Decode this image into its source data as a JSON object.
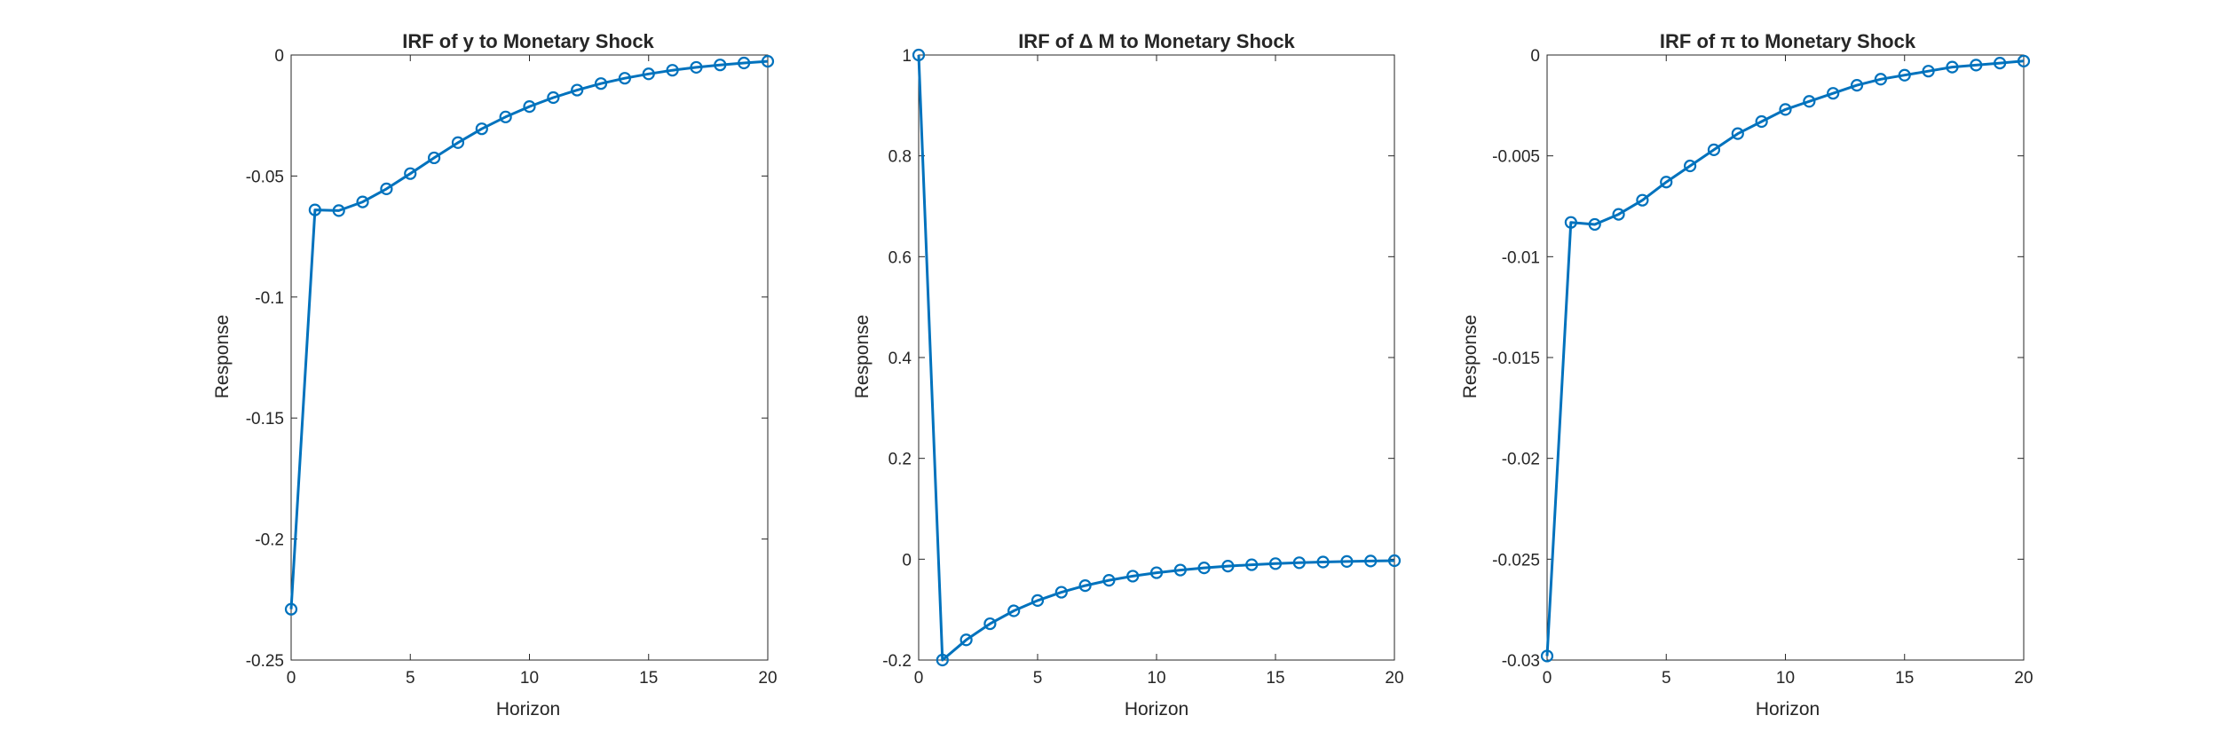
{
  "colors": {
    "line": "#0072BD",
    "axes": "#262626",
    "background": "#ffffff"
  },
  "chart_data": [
    {
      "type": "line",
      "title": "IRF of y to Monetary Shock",
      "xlabel": "Horizon",
      "ylabel": "Response",
      "xlim": [
        0,
        20
      ],
      "ylim": [
        -0.25,
        0
      ],
      "xticks": [
        0,
        5,
        10,
        15,
        20
      ],
      "xtick_labels": [
        "0",
        "5",
        "10",
        "15",
        "20"
      ],
      "yticks": [
        0,
        -0.05,
        -0.1,
        -0.15,
        -0.2,
        -0.25
      ],
      "ytick_labels": [
        "0",
        "-0.05",
        "-0.1",
        "-0.15",
        "-0.2",
        "-0.25"
      ],
      "grid": false,
      "marker": "circle",
      "x": [
        0,
        1,
        2,
        3,
        4,
        5,
        6,
        7,
        8,
        9,
        10,
        11,
        12,
        13,
        14,
        15,
        16,
        17,
        18,
        19,
        20
      ],
      "series": [
        {
          "values": [
            -0.229,
            -0.064,
            -0.0643,
            -0.0607,
            -0.0553,
            -0.049,
            -0.0425,
            -0.0362,
            -0.0305,
            -0.0256,
            -0.0213,
            -0.0176,
            -0.0145,
            -0.0118,
            -0.0096,
            -0.0078,
            -0.0063,
            -0.0051,
            -0.0041,
            -0.0033,
            -0.0026
          ]
        }
      ]
    },
    {
      "type": "line",
      "title": "IRF of Δ M to Monetary Shock",
      "xlabel": "Horizon",
      "ylabel": "Response",
      "xlim": [
        0,
        20
      ],
      "ylim": [
        -0.2,
        1
      ],
      "xticks": [
        0,
        5,
        10,
        15,
        20
      ],
      "xtick_labels": [
        "0",
        "5",
        "10",
        "15",
        "20"
      ],
      "yticks": [
        1,
        0.8,
        0.6,
        0.4,
        0.2,
        0,
        -0.2
      ],
      "ytick_labels": [
        "1",
        "0.8",
        "0.6",
        "0.4",
        "0.2",
        "0",
        "-0.2"
      ],
      "grid": false,
      "marker": "circle",
      "x": [
        0,
        1,
        2,
        3,
        4,
        5,
        6,
        7,
        8,
        9,
        10,
        11,
        12,
        13,
        14,
        15,
        16,
        17,
        18,
        19,
        20
      ],
      "series": [
        {
          "values": [
            1.0,
            -0.2,
            -0.16,
            -0.128,
            -0.1024,
            -0.0819,
            -0.0655,
            -0.0524,
            -0.0419,
            -0.0336,
            -0.0268,
            -0.0215,
            -0.0172,
            -0.0137,
            -0.011,
            -0.0088,
            -0.007,
            -0.0056,
            -0.0045,
            -0.0036,
            -0.0029
          ]
        }
      ]
    },
    {
      "type": "line",
      "title": "IRF of π to Monetary Shock",
      "xlabel": "Horizon",
      "ylabel": "Response",
      "xlim": [
        0,
        20
      ],
      "ylim": [
        -0.03,
        0
      ],
      "xticks": [
        0,
        5,
        10,
        15,
        20
      ],
      "xtick_labels": [
        "0",
        "5",
        "10",
        "15",
        "20"
      ],
      "yticks": [
        0,
        -0.005,
        -0.01,
        -0.015,
        -0.02,
        -0.025,
        -0.03
      ],
      "ytick_labels": [
        "0",
        "-0.005",
        "-0.01",
        "-0.015",
        "-0.02",
        "-0.025",
        "-0.03"
      ],
      "grid": false,
      "marker": "circle",
      "x": [
        0,
        1,
        2,
        3,
        4,
        5,
        6,
        7,
        8,
        9,
        10,
        11,
        12,
        13,
        14,
        15,
        16,
        17,
        18,
        19,
        20
      ],
      "series": [
        {
          "values": [
            -0.0298,
            -0.0083,
            -0.0084,
            -0.0079,
            -0.0072,
            -0.0063,
            -0.0055,
            -0.0047,
            -0.0039,
            -0.0033,
            -0.0027,
            -0.0023,
            -0.0019,
            -0.0015,
            -0.0012,
            -0.001,
            -0.0008,
            -0.0006,
            -0.0005,
            -0.0004,
            -0.0003
          ]
        }
      ]
    }
  ]
}
